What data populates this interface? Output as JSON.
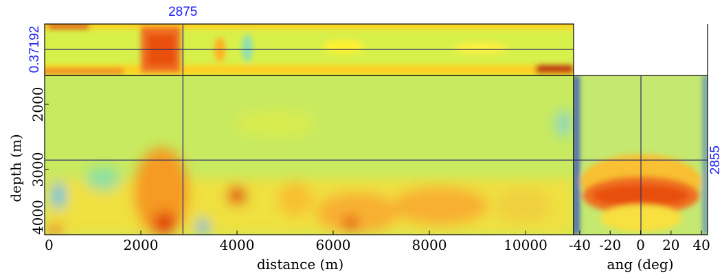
{
  "chart_data": [
    {
      "type": "heatmap",
      "x_label": "distance (m)",
      "y_label": "depth (m)",
      "xlim": [
        0,
        11000
      ],
      "xticks": [
        0,
        2000,
        4000,
        6000,
        8000,
        10000
      ],
      "ylim": [
        4000,
        1558
      ],
      "yticks": [
        2000,
        3000,
        4000
      ],
      "crosshair": {
        "x": 2875,
        "y": 2855
      },
      "top_panel_label": "0.37192"
    },
    {
      "type": "heatmap",
      "x_label": "ang (deg)",
      "xlim": [
        -44,
        44
      ],
      "xticks": [
        -40,
        -20,
        0,
        20,
        40
      ]
    }
  ]
}
